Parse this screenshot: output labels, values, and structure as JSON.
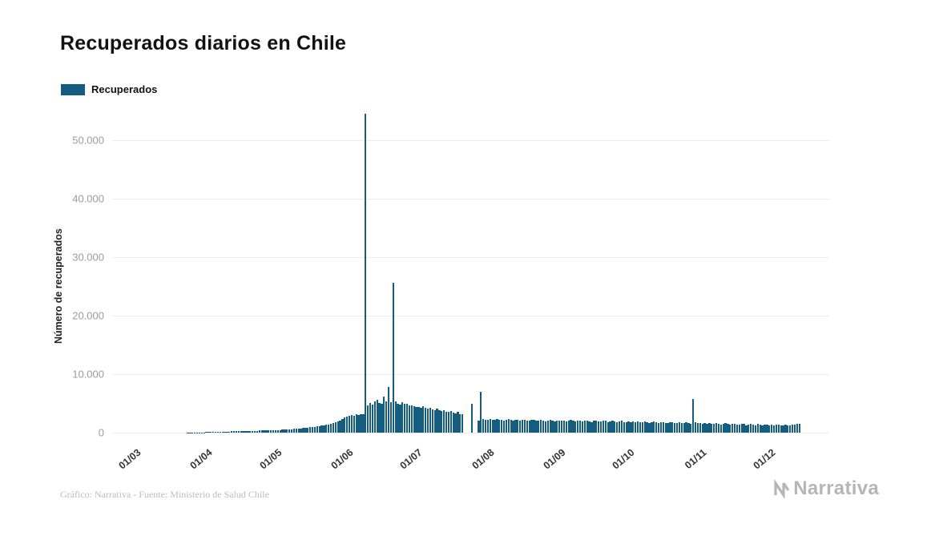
{
  "title": "Recuperados diarios en Chile",
  "legend": {
    "label": "Recuperados",
    "color": "#155d7f"
  },
  "footer": {
    "credit": "Gráfico: Narrativa - Fuente: Ministerio de Salud Chile",
    "logo_text": "Narrativa"
  },
  "chart_data": {
    "type": "bar",
    "title": "Recuperados diarios en Chile",
    "xlabel": "",
    "ylabel": "Número de recuperados",
    "series_name": "Recuperados",
    "bar_color": "#155d7f",
    "grid": true,
    "legend_position": "top-left",
    "ylim": [
      0,
      55000
    ],
    "y_ticks": [
      0,
      10000,
      20000,
      30000,
      40000,
      50000
    ],
    "y_tick_labels": [
      "0",
      "10.000",
      "20.000",
      "30.000",
      "40.000",
      "50.000"
    ],
    "x_tick_labels": [
      "01/03",
      "01/04",
      "01/05",
      "01/06",
      "01/07",
      "01/08",
      "01/09",
      "01/10",
      "01/11",
      "01/12"
    ],
    "x_tick_day_offsets": [
      0,
      31,
      61,
      92,
      122,
      153,
      184,
      214,
      245,
      275
    ],
    "start_date": "01/03",
    "values": [
      0,
      0,
      0,
      0,
      0,
      0,
      0,
      0,
      0,
      0,
      0,
      0,
      0,
      0,
      0,
      0,
      0,
      0,
      0,
      0,
      0,
      0,
      5,
      8,
      12,
      18,
      25,
      35,
      45,
      60,
      80,
      100,
      115,
      125,
      140,
      150,
      160,
      170,
      185,
      195,
      205,
      215,
      230,
      240,
      250,
      260,
      270,
      285,
      295,
      305,
      315,
      330,
      340,
      350,
      365,
      375,
      390,
      400,
      415,
      430,
      445,
      460,
      480,
      500,
      525,
      550,
      580,
      610,
      640,
      670,
      700,
      740,
      780,
      820,
      860,
      900,
      950,
      1000,
      1060,
      1120,
      1180,
      1250,
      1320,
      1400,
      1500,
      1600,
      1750,
      1900,
      2100,
      2300,
      2550,
      2800,
      2900,
      3000,
      2850,
      3100,
      2950,
      3200,
      3100,
      54480,
      4600,
      5100,
      4800,
      5300,
      5600,
      5100,
      4900,
      6100,
      5400,
      7800,
      5200,
      25580,
      5300,
      5000,
      4800,
      5200,
      5000,
      4900,
      4700,
      4600,
      4500,
      4400,
      4400,
      4300,
      4500,
      4200,
      4100,
      4300,
      4000,
      3900,
      4100,
      3800,
      3700,
      3900,
      3600,
      3500,
      3700,
      3400,
      3300,
      3500,
      3200,
      3100,
      0,
      0,
      0,
      4950,
      0,
      0,
      2100,
      7050,
      2300,
      2250,
      2200,
      2300,
      2250,
      2200,
      2350,
      2150,
      2250,
      2100,
      2200,
      2300,
      2150,
      2100,
      2250,
      2200,
      2050,
      2150,
      2250,
      2100,
      2000,
      2150,
      2200,
      2050,
      2100,
      2200,
      2000,
      1950,
      2100,
      2150,
      2000,
      1950,
      2050,
      2100,
      2000,
      2100,
      1950,
      2050,
      2150,
      2000,
      1900,
      2050,
      2100,
      1950,
      2000,
      2100,
      1900,
      1850,
      2000,
      2050,
      1900,
      1950,
      2100,
      2000,
      1850,
      1900,
      2050,
      1950,
      1800,
      1900,
      2000,
      1850,
      1800,
      1900,
      1850,
      1900,
      1800,
      1950,
      1850,
      1750,
      1900,
      1800,
      1700,
      1850,
      1900,
      1750,
      1700,
      1800,
      1850,
      1700,
      1650,
      1800,
      1750,
      1600,
      1700,
      1800,
      1650,
      1600,
      1750,
      1700,
      1550,
      5750,
      1800,
      1650,
      1600,
      1550,
      1600,
      1500,
      1650,
      1550,
      1450,
      1600,
      1500,
      1400,
      1550,
      1600,
      1450,
      1400,
      1500,
      1550,
      1400,
      1350,
      1500,
      1450,
      1300,
      1400,
      1500,
      1350,
      1300,
      1450,
      1400,
      1300,
      1350,
      1400,
      1300,
      1350,
      1300,
      1400,
      1350,
      1250,
      1300,
      1400,
      1300,
      1250,
      1350,
      1400,
      1450,
      1500
    ]
  }
}
